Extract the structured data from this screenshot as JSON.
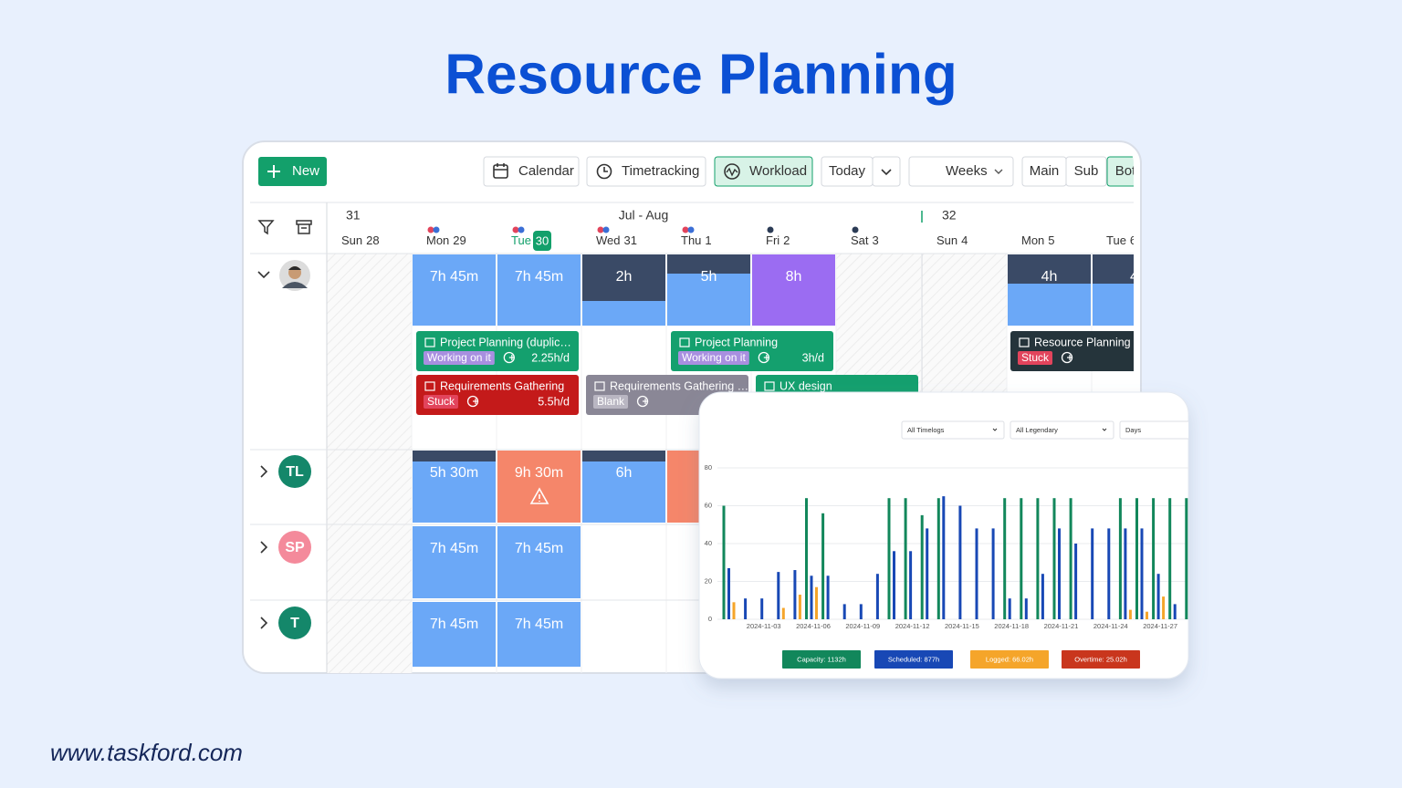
{
  "header": {
    "title": "Resource Planning"
  },
  "toolbar": {
    "new": "New",
    "views": [
      "Calendar",
      "Timetracking",
      "Workload"
    ],
    "today": "Today",
    "period": "Weeks",
    "scopes": [
      "Main",
      "Sub",
      "Bot"
    ]
  },
  "calendar": {
    "weeks": [
      "31",
      "Jul - Aug",
      "32"
    ],
    "days": [
      {
        "day": "Sun",
        "date": "28"
      },
      {
        "day": "Mon",
        "date": "29"
      },
      {
        "day": "Tue",
        "date": "30"
      },
      {
        "day": "Wed",
        "date": "31"
      },
      {
        "day": "Thu",
        "date": "1"
      },
      {
        "day": "Fri",
        "date": "2"
      },
      {
        "day": "Sat",
        "date": "3"
      },
      {
        "day": "Sun",
        "date": "4"
      },
      {
        "day": "Mon",
        "date": "5"
      },
      {
        "day": "Tue",
        "date": "6"
      }
    ]
  },
  "rows": [
    {
      "cells": [
        null,
        "7h 45m",
        "7h 45m",
        "2h",
        "5h",
        "8h",
        null,
        null,
        "4h",
        "4"
      ],
      "tasks": [
        {
          "title": "Project Planning (duplic…",
          "status": "Working on it",
          "rate": "2.25h/d"
        },
        {
          "title": "Project Planning",
          "status": "Working on it",
          "rate": "3h/d"
        },
        {
          "title": "Resource Planning",
          "status": "Stuck"
        },
        {
          "title": "Requirements Gathering",
          "status": "Stuck",
          "rate": "5.5h/d"
        },
        {
          "title": "Requirements Gathering …",
          "status": "Blank"
        },
        {
          "title": "UX design"
        }
      ]
    },
    {
      "initials": "TL",
      "cells": [
        null,
        "5h 30m",
        "9h 30m",
        "6h",
        null,
        null,
        null,
        null,
        null,
        null
      ]
    },
    {
      "initials": "SP",
      "cells": [
        null,
        "7h 45m",
        "7h 45m",
        null,
        null,
        null,
        null,
        null,
        null,
        null
      ]
    },
    {
      "initials": "T",
      "cells": [
        null,
        "7h 45m",
        "7h 45m",
        null,
        null,
        null,
        null,
        null,
        null,
        null
      ]
    }
  ],
  "inset": {
    "filters": [
      "All Timelogs",
      "All Legendary",
      "Days"
    ]
  },
  "chart_data": {
    "type": "bar",
    "categories": [
      null,
      null,
      "2024-11-03",
      null,
      null,
      "2024-11-06",
      null,
      null,
      "2024-11-09",
      null,
      null,
      "2024-11-12",
      null,
      null,
      "2024-11-15",
      null,
      null,
      "2024-11-18",
      null,
      null,
      "2024-11-21",
      null,
      null,
      "2024-11-24",
      null,
      null,
      "2024-11-27",
      null,
      null
    ],
    "series": [
      {
        "name": "Capacity: 1132h",
        "color": "#12875b",
        "values": [
          60,
          null,
          null,
          null,
          null,
          64,
          56,
          null,
          null,
          null,
          64,
          64,
          55,
          64,
          null,
          null,
          null,
          64,
          64,
          64,
          64,
          64,
          null,
          null,
          64,
          64,
          64,
          64,
          64
        ]
      },
      {
        "name": "Scheduled: 877h",
        "color": "#1848b5",
        "values": [
          27,
          11,
          11,
          25,
          26,
          23,
          23,
          8,
          8,
          24,
          36,
          36,
          48,
          65,
          60,
          48,
          48,
          11,
          11,
          24,
          48,
          40,
          48,
          48,
          48,
          48,
          24,
          8,
          null
        ]
      },
      {
        "name": "Logged: 66.02h",
        "color": "#f5a52a",
        "values": [
          9,
          null,
          null,
          6,
          13,
          17,
          null,
          null,
          null,
          null,
          null,
          null,
          null,
          null,
          null,
          null,
          null,
          null,
          null,
          null,
          null,
          null,
          null,
          null,
          5,
          4,
          12,
          null,
          null
        ]
      },
      {
        "name": "Overtime: 25.02h",
        "color": "#c9361d",
        "values": [
          null,
          null,
          null,
          null,
          null,
          null,
          null,
          null,
          null,
          null,
          null,
          null,
          null,
          null,
          null,
          null,
          null,
          null,
          null,
          null,
          null,
          null,
          null,
          null,
          null,
          null,
          null,
          null,
          null
        ]
      }
    ],
    "ylim": [
      0,
      80
    ],
    "yticks": [
      0,
      20,
      40,
      60,
      80
    ],
    "grid": true
  },
  "footer": {
    "url": "www.taskford.com"
  }
}
